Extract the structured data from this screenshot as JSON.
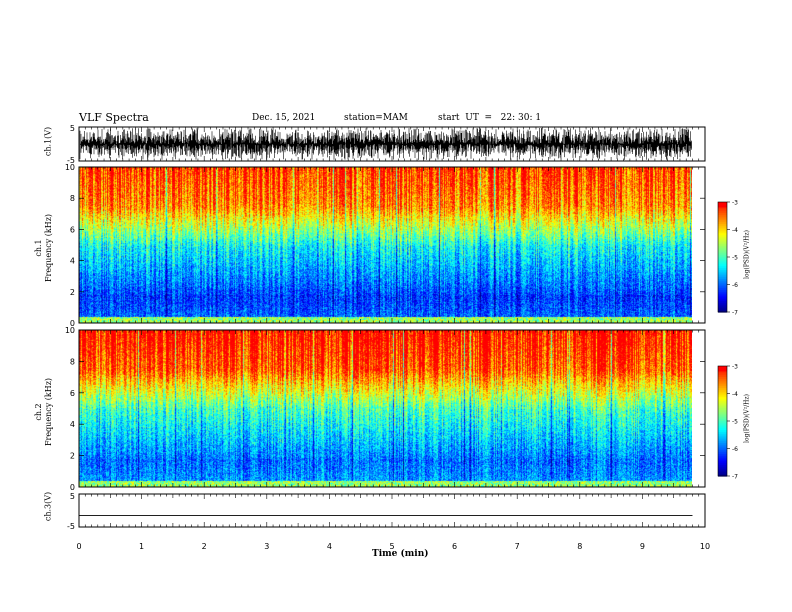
{
  "header": {
    "title": "VLF Spectra",
    "date": "Dec. 15, 2021",
    "station": "station=MAM",
    "start": "start  UT  =   22: 30: 1"
  },
  "chart_data": [
    {
      "type": "line",
      "panel": "ch1-waveform",
      "ylabel": "ch.1(V)",
      "ylim": [
        -5,
        5
      ],
      "yticks": [
        "5",
        "-5"
      ],
      "xlim": [
        0,
        10
      ],
      "description_color": "#000000"
    },
    {
      "type": "heatmap",
      "panel": "ch1-spectrogram",
      "ylabel_line1": "ch.1",
      "ylabel_line2": "Frequency (kHz)",
      "ylim": [
        0,
        10
      ],
      "yticks": [
        "0",
        "2",
        "4",
        "6",
        "8",
        "10"
      ],
      "xlim": [
        0,
        10
      ],
      "colorbar": {
        "label": "log(PSD)(V²/Hz)",
        "ticks": [
          "-3",
          "-4",
          "-5",
          "-6",
          "-7"
        ],
        "range": [
          -7,
          -3
        ]
      }
    },
    {
      "type": "heatmap",
      "panel": "ch2-spectrogram",
      "ylabel_line1": "ch.2",
      "ylabel_line2": "Frequency (kHz)",
      "ylim": [
        0,
        10
      ],
      "yticks": [
        "0",
        "2",
        "4",
        "6",
        "8",
        "10"
      ],
      "xlim": [
        0,
        10
      ],
      "colorbar": {
        "label": "log(PSD)(V²/Hz)",
        "ticks": [
          "-3",
          "-4",
          "-5",
          "-6",
          "-7"
        ],
        "range": [
          -7,
          -3
        ]
      }
    },
    {
      "type": "line",
      "panel": "ch3-waveform",
      "ylabel": "ch.3(V)",
      "ylim": [
        -5,
        5
      ],
      "yticks": [
        "5",
        "-5"
      ],
      "xlim": [
        0,
        10
      ],
      "x": [
        0,
        9.8
      ],
      "values": [
        -1.5,
        -1.5
      ]
    }
  ],
  "xaxis": {
    "label": "Time (min)",
    "ticks": [
      "0",
      "1",
      "2",
      "3",
      "4",
      "5",
      "6",
      "7",
      "8",
      "9",
      "10"
    ]
  },
  "colors": {
    "spectrum": [
      "#00007f",
      "#0000ff",
      "#0080ff",
      "#00ffff",
      "#80ff80",
      "#ffff00",
      "#ff8000",
      "#ff0000",
      "#ffffff"
    ]
  }
}
